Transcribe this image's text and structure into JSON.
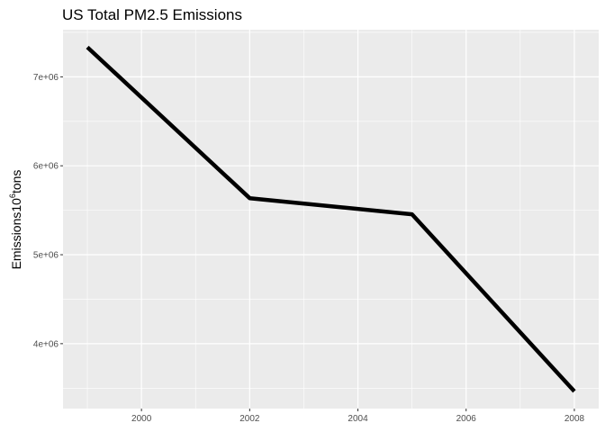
{
  "chart_data": {
    "type": "line",
    "title": "US Total PM2.5 Emissions",
    "xlabel": "",
    "ylabel": {
      "prefix": "Emissions10",
      "superscript": "6",
      "suffix": "tons"
    },
    "x": [
      1999,
      2002,
      2005,
      2008
    ],
    "series": [
      {
        "values": [
          7332967,
          5635780,
          5454703,
          3464206
        ]
      }
    ],
    "xlim": [
      1998.55,
      2008.45
    ],
    "ylim": [
      3270000,
      7530000
    ],
    "xticks": [
      2000,
      2002,
      2004,
      2006,
      2008
    ],
    "xtick_labels": [
      "2000",
      "2002",
      "2004",
      "2006",
      "2008"
    ],
    "yticks": [
      4000000,
      5000000,
      6000000,
      7000000
    ],
    "ytick_labels": [
      "4e+06",
      "5e+06",
      "6e+06",
      "7e+06"
    ],
    "grid": true,
    "colors": {
      "panel": "#ebebeb",
      "grid": "#ffffff",
      "line": "#000000",
      "ticks": "#333333"
    }
  }
}
